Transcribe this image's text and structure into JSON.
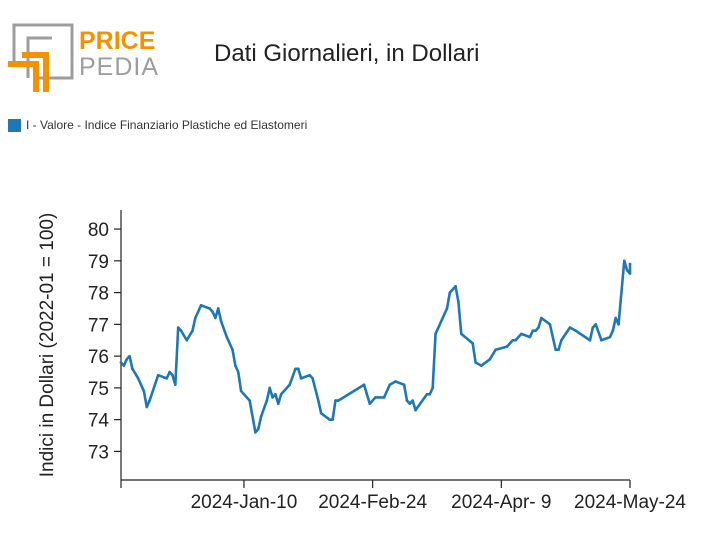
{
  "logo": {
    "word1": "PRICE",
    "word2": "PEDIA",
    "accent": "#F39200",
    "gray": "#9D9D9D"
  },
  "title": "Dati Giornalieri, in Dollari",
  "chart_data": {
    "type": "line",
    "ylabel": "Indici in Dollari (2022-01 = 100)",
    "xlabel": "",
    "ylim": [
      72.1,
      80.6
    ],
    "yticks": [
      73,
      74,
      75,
      76,
      77,
      78,
      79,
      80
    ],
    "xlim": [
      "2023-11-28",
      "2024-05-24"
    ],
    "xticks": [
      {
        "date": "2024-01-10",
        "label": "2024-Jan-10"
      },
      {
        "date": "2024-02-24",
        "label": "2024-Feb-24"
      },
      {
        "date": "2024-04-09",
        "label": "2024-Apr- 9"
      },
      {
        "date": "2024-05-24",
        "label": "2024-May-24"
      }
    ],
    "series": [
      {
        "name": "I - Valore - Indice Finanziario Plastiche ed Elastomeri",
        "color": "#1F77B4",
        "points": [
          [
            "2023-11-28",
            75.8
          ],
          [
            "2023-11-29",
            75.7
          ],
          [
            "2023-11-30",
            75.9
          ],
          [
            "2023-12-01",
            76.0
          ],
          [
            "2023-12-02",
            75.6
          ],
          [
            "2023-12-04",
            75.3
          ],
          [
            "2023-12-06",
            74.9
          ],
          [
            "2023-12-07",
            74.4
          ],
          [
            "2023-12-08",
            74.6
          ],
          [
            "2023-12-11",
            75.4
          ],
          [
            "2023-12-14",
            75.3
          ],
          [
            "2023-12-15",
            75.5
          ],
          [
            "2023-12-16",
            75.4
          ],
          [
            "2023-12-17",
            75.1
          ],
          [
            "2023-12-18",
            76.9
          ],
          [
            "2023-12-19",
            76.8
          ],
          [
            "2023-12-21",
            76.5
          ],
          [
            "2023-12-23",
            76.8
          ],
          [
            "2023-12-24",
            77.2
          ],
          [
            "2023-12-26",
            77.6
          ],
          [
            "2023-12-29",
            77.5
          ],
          [
            "2023-12-30",
            77.4
          ],
          [
            "2023-12-31",
            77.2
          ],
          [
            "2024-01-01",
            77.5
          ],
          [
            "2024-01-02",
            77.1
          ],
          [
            "2024-01-04",
            76.6
          ],
          [
            "2024-01-06",
            76.2
          ],
          [
            "2024-01-07",
            75.7
          ],
          [
            "2024-01-08",
            75.5
          ],
          [
            "2024-01-09",
            74.9
          ],
          [
            "2024-01-12",
            74.6
          ],
          [
            "2024-01-14",
            73.6
          ],
          [
            "2024-01-15",
            73.7
          ],
          [
            "2024-01-16",
            74.1
          ],
          [
            "2024-01-18",
            74.6
          ],
          [
            "2024-01-19",
            75.0
          ],
          [
            "2024-01-20",
            74.7
          ],
          [
            "2024-01-21",
            74.8
          ],
          [
            "2024-01-22",
            74.5
          ],
          [
            "2024-01-23",
            74.8
          ],
          [
            "2024-01-26",
            75.1
          ],
          [
            "2024-01-28",
            75.6
          ],
          [
            "2024-01-29",
            75.6
          ],
          [
            "2024-01-30",
            75.3
          ],
          [
            "2024-02-02",
            75.4
          ],
          [
            "2024-02-03",
            75.3
          ],
          [
            "2024-02-05",
            74.6
          ],
          [
            "2024-02-06",
            74.2
          ],
          [
            "2024-02-09",
            74.0
          ],
          [
            "2024-02-10",
            74.0
          ],
          [
            "2024-02-11",
            74.6
          ],
          [
            "2024-02-12",
            74.6
          ],
          [
            "2024-02-21",
            75.1
          ],
          [
            "2024-02-22",
            74.8
          ],
          [
            "2024-02-23",
            74.5
          ],
          [
            "2024-02-25",
            74.7
          ],
          [
            "2024-02-28",
            74.7
          ],
          [
            "2024-03-01",
            75.1
          ],
          [
            "2024-03-03",
            75.2
          ],
          [
            "2024-03-06",
            75.1
          ],
          [
            "2024-03-07",
            74.6
          ],
          [
            "2024-03-08",
            74.5
          ],
          [
            "2024-03-09",
            74.6
          ],
          [
            "2024-03-10",
            74.3
          ],
          [
            "2024-03-14",
            74.8
          ],
          [
            "2024-03-15",
            74.8
          ],
          [
            "2024-03-16",
            75.0
          ],
          [
            "2024-03-17",
            76.7
          ],
          [
            "2024-03-21",
            77.5
          ],
          [
            "2024-03-22",
            78.0
          ],
          [
            "2024-03-24",
            78.2
          ],
          [
            "2024-03-25",
            77.7
          ],
          [
            "2024-03-26",
            76.7
          ],
          [
            "2024-03-30",
            76.4
          ],
          [
            "2024-03-31",
            75.8
          ],
          [
            "2024-04-02",
            75.7
          ],
          [
            "2024-04-05",
            75.9
          ],
          [
            "2024-04-07",
            76.2
          ],
          [
            "2024-04-11",
            76.3
          ],
          [
            "2024-04-12",
            76.4
          ],
          [
            "2024-04-13",
            76.5
          ],
          [
            "2024-04-14",
            76.5
          ],
          [
            "2024-04-16",
            76.7
          ],
          [
            "2024-04-19",
            76.6
          ],
          [
            "2024-04-20",
            76.8
          ],
          [
            "2024-04-21",
            76.8
          ],
          [
            "2024-04-22",
            76.9
          ],
          [
            "2024-04-23",
            77.2
          ],
          [
            "2024-04-26",
            77.0
          ],
          [
            "2024-04-28",
            76.2
          ],
          [
            "2024-04-29",
            76.2
          ],
          [
            "2024-04-30",
            76.5
          ],
          [
            "2024-05-03",
            76.9
          ],
          [
            "2024-05-05",
            76.8
          ],
          [
            "2024-05-10",
            76.5
          ],
          [
            "2024-05-11",
            76.9
          ],
          [
            "2024-05-12",
            77.0
          ],
          [
            "2024-05-14",
            76.5
          ],
          [
            "2024-05-17",
            76.6
          ],
          [
            "2024-05-18",
            76.8
          ],
          [
            "2024-05-19",
            77.2
          ],
          [
            "2024-05-20",
            77.0
          ],
          [
            "2024-05-22",
            79.0
          ],
          [
            "2024-05-23",
            78.7
          ],
          [
            "2024-05-24",
            78.6
          ],
          [
            "2024-05-24",
            78.9
          ]
        ]
      }
    ],
    "grid": false,
    "legend": "top-left"
  }
}
